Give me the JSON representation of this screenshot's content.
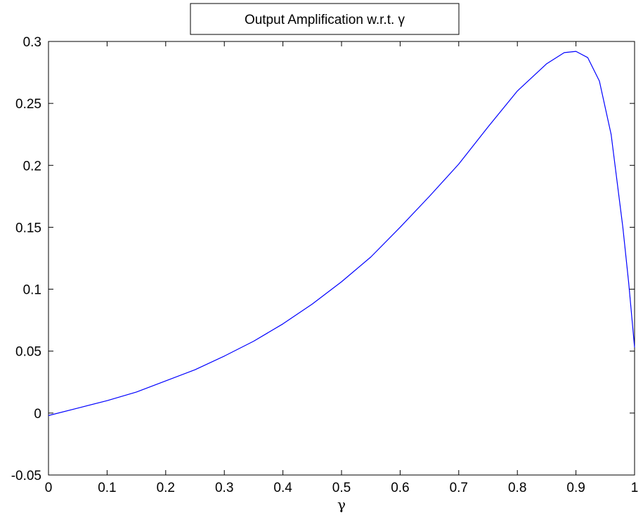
{
  "chart_data": {
    "type": "line",
    "title": "Output  Amplification  w.r.t. γ",
    "xlabel": "γ",
    "ylabel": "",
    "xlim": [
      0,
      1
    ],
    "ylim": [
      -0.05,
      0.3
    ],
    "xticks": [
      "0",
      "0.1",
      "0.2",
      "0.3",
      "0.4",
      "0.5",
      "0.6",
      "0.7",
      "0.8",
      "0.9",
      "1"
    ],
    "yticks": [
      "-0.05",
      "0",
      "0.05",
      "0.1",
      "0.15",
      "0.2",
      "0.25",
      "0.3"
    ],
    "grid": false,
    "line_color": "#0000ff",
    "series": [
      {
        "x": [
          0,
          0.05,
          0.1,
          0.15,
          0.2,
          0.25,
          0.3,
          0.35,
          0.4,
          0.45,
          0.5,
          0.55,
          0.6,
          0.65,
          0.7,
          0.75,
          0.8,
          0.85,
          0.88,
          0.9,
          0.92,
          0.94,
          0.96,
          0.98,
          0.99,
          1.0
        ],
        "values": [
          -0.002,
          0.004,
          0.01,
          0.017,
          0.026,
          0.035,
          0.046,
          0.058,
          0.072,
          0.088,
          0.106,
          0.126,
          0.15,
          0.175,
          0.201,
          0.231,
          0.26,
          0.282,
          0.291,
          0.292,
          0.287,
          0.268,
          0.225,
          0.15,
          0.105,
          0.053
        ]
      }
    ]
  }
}
